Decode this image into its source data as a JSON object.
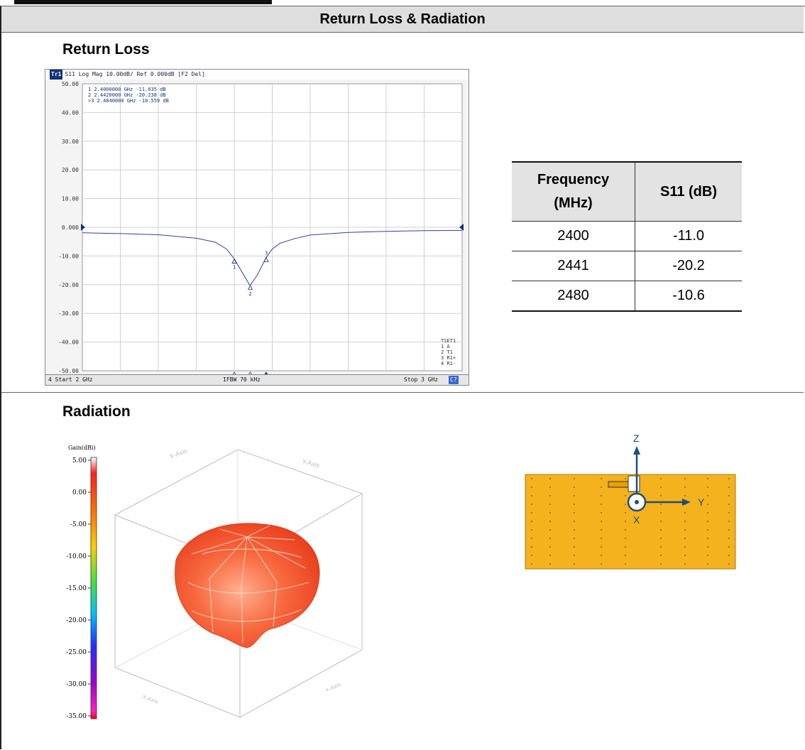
{
  "page": {
    "title": "Return Loss & Radiation",
    "return_loss_heading": "Return Loss",
    "radiation_heading": "Radiation"
  },
  "vna": {
    "header": "S11 Log Mag 10.00dB/ Ref 0.000dB [F2 Del]",
    "trace_tag": "Tr1",
    "y_ticks": [
      "50.00",
      "40.00",
      "30.00",
      "20.00",
      "10.00",
      "0.000",
      "-10.00",
      "-20.00",
      "-30.00",
      "-40.00",
      "-50.00"
    ],
    "markers": [
      {
        "id": "1",
        "text": "2.4000000 GHz  -11.035 dB"
      },
      {
        "id": "2",
        "text": "2.4420000 GHz  -20.238 dB"
      },
      {
        "id": ">3",
        "text": "2.4840000 GHz  -10.559 dB"
      }
    ],
    "tset": [
      "TSET1",
      "1 A",
      "2 T1",
      "3 R1+",
      "4 R1-"
    ],
    "footer_left": "4  Start 2 GHz",
    "footer_mid": "IFBW 70 kHz",
    "footer_right": "Stop 3 GHz",
    "footer_tag": "C?"
  },
  "chart_data": {
    "type": "line",
    "title": "S11 Log Mag 10.00dB/ Ref 0.000dB [F2 Del]",
    "xlabel": "",
    "ylabel": "",
    "xlim": [
      2.0,
      3.0
    ],
    "ylim": [
      -50,
      50
    ],
    "series": [
      {
        "name": "S11",
        "x": [
          2.0,
          2.1,
          2.2,
          2.3,
          2.35,
          2.38,
          2.4,
          2.42,
          2.44,
          2.442,
          2.46,
          2.484,
          2.5,
          2.52,
          2.56,
          2.6,
          2.7,
          2.8,
          2.9,
          3.0
        ],
        "y": [
          -1.9,
          -2.2,
          -2.6,
          -3.8,
          -5.2,
          -7.6,
          -11.0,
          -15.5,
          -20.0,
          -20.2,
          -16.8,
          -10.6,
          -7.6,
          -5.6,
          -3.9,
          -2.7,
          -1.8,
          -1.4,
          -1.2,
          -1.1
        ]
      }
    ]
  },
  "table": {
    "headers": [
      "Frequency (MHz)",
      "S11 (dB)"
    ],
    "rows": [
      [
        "2400",
        "-11.0"
      ],
      [
        "2441",
        "-20.2"
      ],
      [
        "2480",
        "-10.6"
      ]
    ]
  },
  "radiation": {
    "colorbar_title": "Gain(dBi)",
    "colorbar_ticks": [
      "5.00",
      "0.00",
      "-5.00",
      "-10.00",
      "-15.00",
      "-20.00",
      "-25.00",
      "-30.00",
      "-35.00"
    ],
    "axis_labels": [
      "X-Axis",
      "Y-Axis"
    ],
    "orientation": {
      "z": "Z",
      "y": "Y",
      "x": "X"
    }
  },
  "colors": {
    "board": "#f4b21e",
    "trace": "#3a3aa8",
    "pattern": "#f05a30"
  }
}
